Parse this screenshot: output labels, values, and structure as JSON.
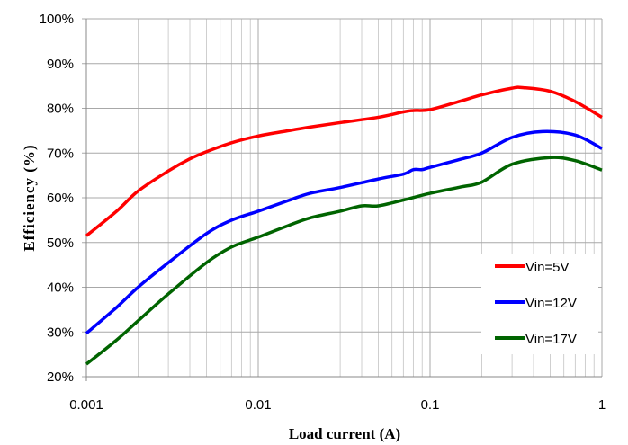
{
  "chart_data": {
    "type": "line",
    "xlabel": "Load current (A)",
    "ylabel": "Efficiency (%)",
    "xscale": "log",
    "xlim": [
      0.001,
      1
    ],
    "ylim": [
      20,
      100
    ],
    "xticks": [
      0.001,
      0.01,
      0.1,
      1
    ],
    "xtick_labels": [
      "0.001",
      "0.01",
      "0.1",
      "1"
    ],
    "yticks": [
      20,
      30,
      40,
      50,
      60,
      70,
      80,
      90,
      100
    ],
    "ytick_labels": [
      "20%",
      "30%",
      "40%",
      "50%",
      "60%",
      "70%",
      "80%",
      "90%",
      "100%"
    ],
    "grid": true,
    "legend_position": "bottom-right",
    "series": [
      {
        "name": "Vin=5V",
        "color": "#ff0000",
        "x": [
          0.001,
          0.0015,
          0.002,
          0.003,
          0.004,
          0.005,
          0.007,
          0.01,
          0.015,
          0.02,
          0.03,
          0.05,
          0.07,
          0.08,
          0.1,
          0.15,
          0.2,
          0.3,
          0.35,
          0.5,
          0.7,
          1
        ],
        "y": [
          51.5,
          57,
          61.5,
          66,
          68.7,
          70.3,
          72.3,
          73.8,
          75,
          75.8,
          76.8,
          78,
          79.2,
          79.5,
          79.7,
          81.6,
          83,
          84.5,
          84.6,
          83.8,
          81.5,
          78
        ]
      },
      {
        "name": "Vin=12V",
        "color": "#0000ff",
        "x": [
          0.001,
          0.0015,
          0.002,
          0.003,
          0.005,
          0.007,
          0.01,
          0.015,
          0.02,
          0.03,
          0.05,
          0.07,
          0.08,
          0.09,
          0.1,
          0.15,
          0.2,
          0.3,
          0.45,
          0.7,
          1
        ],
        "y": [
          29.7,
          35.5,
          40,
          45.5,
          52,
          55,
          57,
          59.4,
          61,
          62.3,
          64.2,
          65.3,
          66.3,
          66.3,
          66.8,
          68.6,
          70,
          73.5,
          74.8,
          74,
          71
        ]
      },
      {
        "name": "Vin=17V",
        "color": "#006400",
        "x": [
          0.001,
          0.0015,
          0.002,
          0.003,
          0.005,
          0.007,
          0.01,
          0.015,
          0.02,
          0.03,
          0.04,
          0.05,
          0.07,
          0.1,
          0.15,
          0.2,
          0.3,
          0.5,
          0.7,
          1
        ],
        "y": [
          22.8,
          28.2,
          32.5,
          38.5,
          45.5,
          49,
          51.2,
          53.8,
          55.5,
          57,
          58.2,
          58.2,
          59.5,
          61,
          62.4,
          63.5,
          67.5,
          69,
          68.3,
          66.2
        ]
      }
    ]
  }
}
